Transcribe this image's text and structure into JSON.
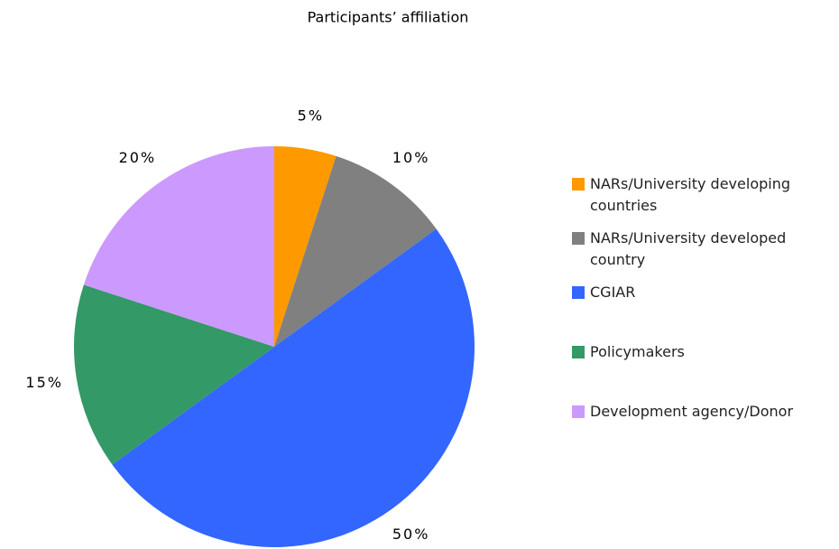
{
  "chart_data": {
    "type": "pie",
    "title": "Participants’ affiliation",
    "categories": [
      "NARs/University developing countries",
      "NARs/University developed country",
      "CGIAR",
      "Policymakers",
      "Development agency/Donor"
    ],
    "values": [
      5,
      10,
      50,
      15,
      20
    ],
    "value_labels": [
      "5%",
      "10%",
      "50%",
      "15%",
      "20%"
    ],
    "colors": [
      "#ff9900",
      "#808080",
      "#3366ff",
      "#339966",
      "#cc99ff"
    ],
    "legend": "right"
  }
}
